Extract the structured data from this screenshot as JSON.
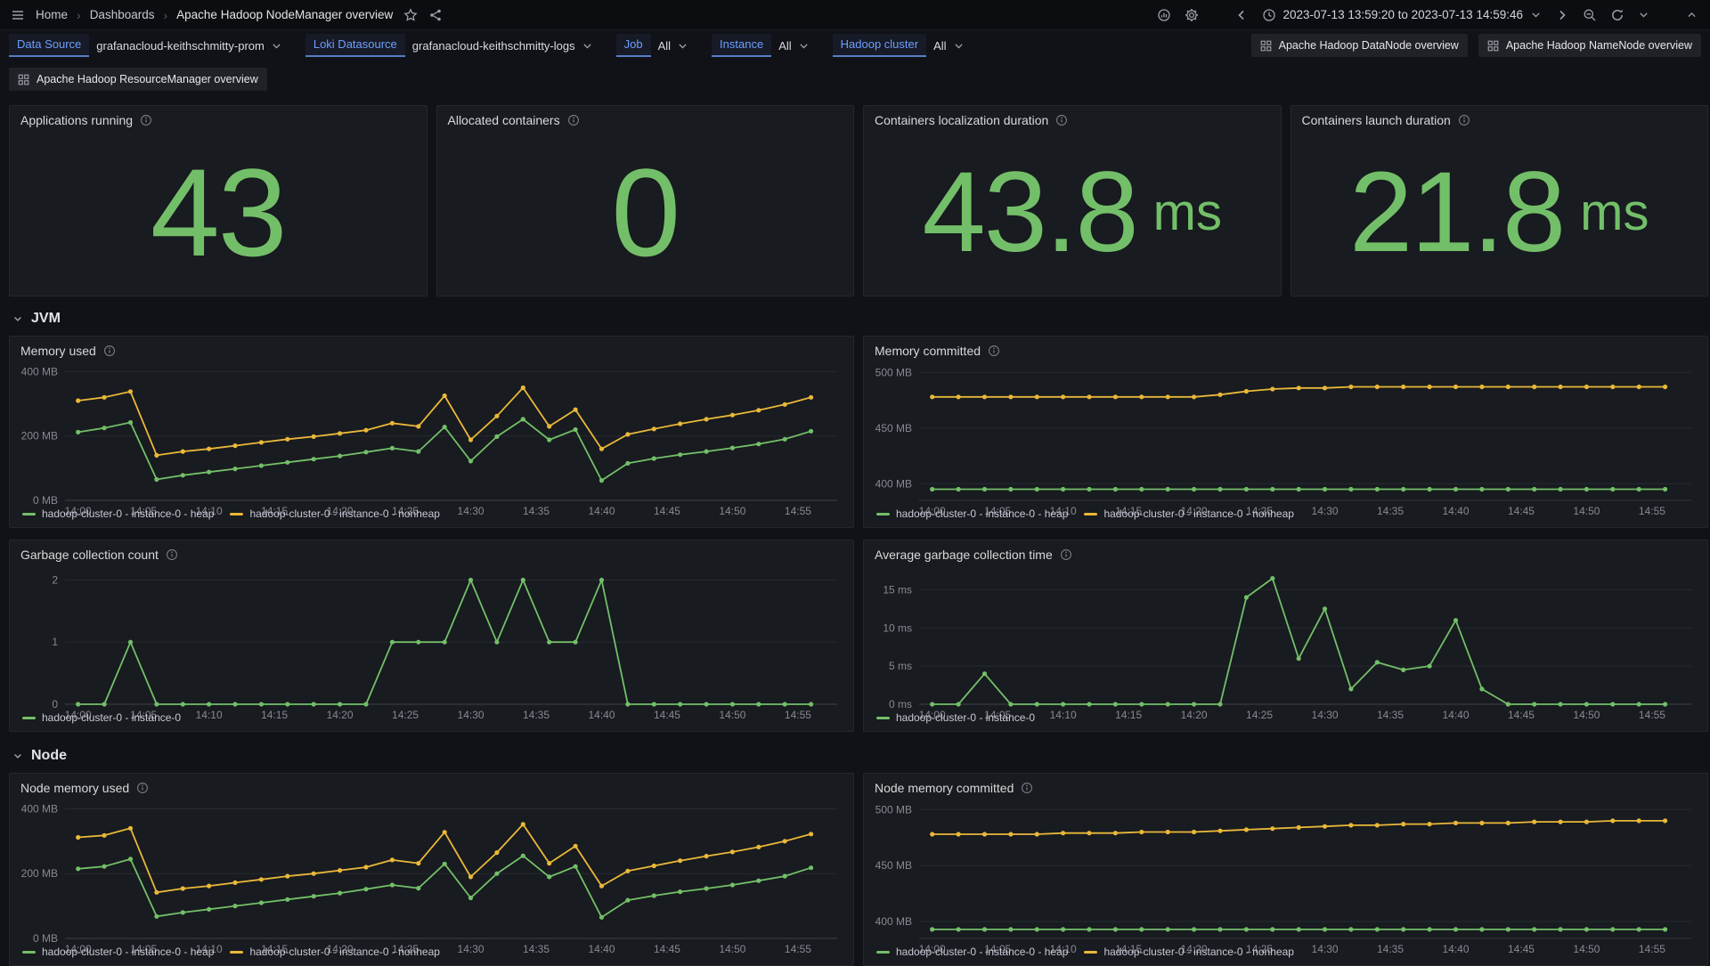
{
  "colors": {
    "green": "#73BF69",
    "yellow": "#EAB839",
    "blue": "#6E9FFF",
    "page_bg": "#111217",
    "panel_bg": "#181B1F",
    "text": "#CCCCDC",
    "title": "#D8D9DA"
  },
  "nav": {
    "breadcrumbs": {
      "home": "Home",
      "dashboards": "Dashboards",
      "current": "Apache Hadoop NodeManager overview"
    },
    "separator": "›",
    "time_range": "2023-07-13 13:59:20 to 2023-07-13 14:59:46"
  },
  "variables": [
    {
      "label": "Data Source",
      "value": "grafanacloud-keithschmitty-prom"
    },
    {
      "label": "Loki Datasource",
      "value": "grafanacloud-keithschmitty-logs"
    },
    {
      "label": "Job",
      "value": "All"
    },
    {
      "label": "Instance",
      "value": "All"
    },
    {
      "label": "Hadoop cluster",
      "value": "All"
    }
  ],
  "links": {
    "datanode": "Apache Hadoop DataNode overview",
    "namenode": "Apache Hadoop NameNode overview",
    "resourcemanager": "Apache Hadoop ResourceManager overview"
  },
  "stats": [
    {
      "title": "Applications running",
      "value": "43",
      "unit": ""
    },
    {
      "title": "Allocated containers",
      "value": "0",
      "unit": ""
    },
    {
      "title": "Containers localization duration",
      "value": "43.8",
      "unit": "ms"
    },
    {
      "title": "Containers launch duration",
      "value": "21.8",
      "unit": "ms"
    }
  ],
  "sections": {
    "jvm": "JVM",
    "node": "Node"
  },
  "chart_data": {
    "type": "line",
    "x_axis": {
      "xmin": -1,
      "xmax": 58,
      "x": [
        0,
        2,
        4,
        6,
        8,
        10,
        12,
        14,
        16,
        18,
        20,
        22,
        24,
        26,
        28,
        30,
        32,
        34,
        36,
        38,
        40,
        42,
        44,
        46,
        48,
        50,
        52,
        54,
        56
      ],
      "ticks": [
        {
          "v": 0,
          "label": "14:00"
        },
        {
          "v": 5,
          "label": "14:05"
        },
        {
          "v": 10,
          "label": "14:10"
        },
        {
          "v": 15,
          "label": "14:15"
        },
        {
          "v": 20,
          "label": "14:20"
        },
        {
          "v": 25,
          "label": "14:25"
        },
        {
          "v": 30,
          "label": "14:30"
        },
        {
          "v": 35,
          "label": "14:35"
        },
        {
          "v": 40,
          "label": "14:40"
        },
        {
          "v": 45,
          "label": "14:45"
        },
        {
          "v": 50,
          "label": "14:50"
        },
        {
          "v": 55,
          "label": "14:55"
        }
      ]
    },
    "charts": [
      {
        "title": "Memory used",
        "ymin": 0,
        "ymax": 415,
        "yticks": [
          {
            "v": 0,
            "label": "0 MB"
          },
          {
            "v": 200,
            "label": "200 MB"
          },
          {
            "v": 400,
            "label": "400 MB"
          }
        ],
        "series": [
          {
            "name": "hadoop-cluster-0 - instance-0 - heap",
            "color": "green",
            "values": [
              212,
              225,
              242,
              65,
              78,
              88,
              98,
              108,
              118,
              128,
              138,
              150,
              162,
              152,
              228,
              122,
              198,
              252,
              188,
              220,
              62,
              115,
              130,
              142,
              152,
              163,
              175,
              190,
              215
            ]
          },
          {
            "name": "hadoop-cluster-0 - instance-0 - nonheap",
            "color": "yellow",
            "values": [
              310,
              320,
              338,
              140,
              152,
              160,
              170,
              180,
              190,
              198,
              208,
              218,
              240,
              230,
              325,
              188,
              262,
              350,
              230,
              282,
              160,
              205,
              222,
              238,
              252,
              265,
              280,
              298,
              320
            ]
          }
        ]
      },
      {
        "title": "Memory committed",
        "ymin": 385,
        "ymax": 505,
        "yticks": [
          {
            "v": 400,
            "label": "400 MB"
          },
          {
            "v": 450,
            "label": "450 MB"
          },
          {
            "v": 500,
            "label": "500 MB"
          }
        ],
        "series": [
          {
            "name": "hadoop-cluster-0 - instance-0 - heap",
            "color": "green",
            "values": [
              395,
              395,
              395,
              395,
              395,
              395,
              395,
              395,
              395,
              395,
              395,
              395,
              395,
              395,
              395,
              395,
              395,
              395,
              395,
              395,
              395,
              395,
              395,
              395,
              395,
              395,
              395,
              395,
              395
            ]
          },
          {
            "name": "hadoop-cluster-0 - instance-0 - nonheap",
            "color": "yellow",
            "values": [
              478,
              478,
              478,
              478,
              478,
              478,
              478,
              478,
              478,
              478,
              478,
              480,
              483,
              485,
              486,
              486,
              487,
              487,
              487,
              487,
              487,
              487,
              487,
              487,
              487,
              487,
              487,
              487,
              487
            ]
          }
        ]
      },
      {
        "title": "Garbage collection count",
        "ymin": 0,
        "ymax": 2.15,
        "yticks": [
          {
            "v": 0,
            "label": "0"
          },
          {
            "v": 1,
            "label": "1"
          },
          {
            "v": 2,
            "label": "2"
          }
        ],
        "series": [
          {
            "name": "hadoop-cluster-0 - instance-0",
            "color": "green",
            "values": [
              0,
              0,
              1,
              0,
              0,
              0,
              0,
              0,
              0,
              0,
              0,
              0,
              1,
              1,
              1,
              2,
              1,
              2,
              1,
              1,
              2,
              0,
              0,
              0,
              0,
              0,
              0,
              0,
              0
            ]
          }
        ]
      },
      {
        "title": "Average garbage collection time",
        "ymin": 0,
        "ymax": 17.5,
        "yticks": [
          {
            "v": 0,
            "label": "0 ms"
          },
          {
            "v": 5,
            "label": "5 ms"
          },
          {
            "v": 10,
            "label": "10 ms"
          },
          {
            "v": 15,
            "label": "15 ms"
          }
        ],
        "series": [
          {
            "name": "hadoop-cluster-0 - instance-0",
            "color": "green",
            "values": [
              0,
              0,
              4,
              0,
              0,
              0,
              0,
              0,
              0,
              0,
              0,
              0,
              14,
              16.5,
              6,
              12.5,
              2,
              5.5,
              4.5,
              5,
              11,
              2,
              0,
              0,
              0,
              0,
              0,
              0,
              0
            ]
          }
        ]
      },
      {
        "title": "Node memory used",
        "ymin": 0,
        "ymax": 415,
        "yticks": [
          {
            "v": 0,
            "label": "0 MB"
          },
          {
            "v": 200,
            "label": "200 MB"
          },
          {
            "v": 400,
            "label": "400 MB"
          }
        ],
        "series": [
          {
            "name": "hadoop-cluster-0 - instance-0 - heap",
            "color": "green",
            "values": [
              215,
              222,
              245,
              68,
              80,
              90,
              100,
              110,
              120,
              130,
              140,
              152,
              165,
              155,
              230,
              125,
              200,
              255,
              190,
              222,
              65,
              118,
              132,
              144,
              154,
              165,
              178,
              192,
              218
            ]
          },
          {
            "name": "hadoop-cluster-0 - instance-0 - nonheap",
            "color": "yellow",
            "values": [
              312,
              318,
              340,
              142,
              154,
              162,
              172,
              182,
              192,
              200,
              210,
              220,
              242,
              232,
              328,
              190,
              265,
              352,
              232,
              285,
              162,
              208,
              224,
              240,
              254,
              267,
              282,
              300,
              322
            ]
          }
        ]
      },
      {
        "title": "Node memory committed",
        "ymin": 385,
        "ymax": 505,
        "yticks": [
          {
            "v": 400,
            "label": "400 MB"
          },
          {
            "v": 450,
            "label": "450 MB"
          },
          {
            "v": 500,
            "label": "500 MB"
          }
        ],
        "series": [
          {
            "name": "hadoop-cluster-0 - instance-0 - heap",
            "color": "green",
            "values": [
              393,
              393,
              393,
              393,
              393,
              393,
              393,
              393,
              393,
              393,
              393,
              393,
              393,
              393,
              393,
              393,
              393,
              393,
              393,
              393,
              393,
              393,
              393,
              393,
              393,
              393,
              393,
              393,
              393
            ]
          },
          {
            "name": "hadoop-cluster-0 - instance-0 - nonheap",
            "color": "yellow",
            "values": [
              478,
              478,
              478,
              478,
              478,
              479,
              479,
              479,
              480,
              480,
              480,
              481,
              482,
              483,
              484,
              485,
              486,
              486,
              487,
              487,
              488,
              488,
              488,
              489,
              489,
              489,
              490,
              490,
              490
            ]
          }
        ]
      }
    ]
  }
}
